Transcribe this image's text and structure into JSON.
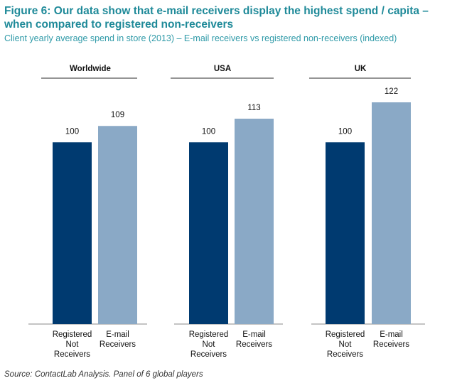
{
  "title": "Figure 6: Our data show that e-mail receivers display the highest spend / capita – when compared to registered non-receivers",
  "subtitle": "Client yearly average spend in store (2013) – E-mail receivers vs registered non-receivers (indexed)",
  "source": "Source: ContactLab Analysis. Panel of 6 global players",
  "colors": {
    "registered": "#003a70",
    "email": "#8aa9c6",
    "title": "#1f8a99"
  },
  "chart_data": {
    "type": "bar",
    "title": "Client yearly average spend in store (2013) – E-mail receivers vs registered non-receivers (indexed)",
    "ylim": [
      0,
      122
    ],
    "groups": [
      {
        "name": "Worldwide",
        "bars": [
          {
            "category": "Registered Not Receivers",
            "value": 100
          },
          {
            "category": "E-mail Receivers",
            "value": 109
          }
        ]
      },
      {
        "name": "USA",
        "bars": [
          {
            "category": "Registered Not Receivers",
            "value": 100
          },
          {
            "category": "E-mail Receivers",
            "value": 113
          }
        ]
      },
      {
        "name": "UK",
        "bars": [
          {
            "category": "Registered Not Receivers",
            "value": 100
          },
          {
            "category": "E-mail Receivers",
            "value": 122
          }
        ]
      }
    ],
    "category_labels": [
      [
        "Registered",
        "Not",
        "Receivers"
      ],
      [
        "E-mail",
        "Receivers"
      ]
    ]
  }
}
